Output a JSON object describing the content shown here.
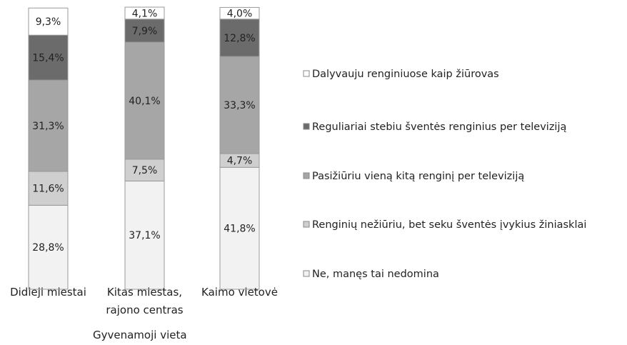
{
  "chart_data": {
    "type": "stacked_bar",
    "x_label": "Gyvenamoji vieta",
    "categories": [
      "Didieji miestai",
      "Kitas miestas, rajono centras",
      "Kaimo vietovė"
    ],
    "ylim": [
      0,
      96.7
    ],
    "series": [
      {
        "name": "Ne, manęs tai nedomina",
        "color": "#f2f2f2",
        "values": [
          28.8,
          37.1,
          41.8
        ],
        "value_labels": [
          "28,8%",
          "37,1%",
          "41,8%"
        ]
      },
      {
        "name": "Renginių nežiūriu, bet seku šventės įvykius žiniasklai",
        "color": "#cfcfcf",
        "values": [
          11.6,
          7.5,
          4.7
        ],
        "value_labels": [
          "11,6%",
          "7,5%",
          "4,7%"
        ]
      },
      {
        "name": "Pasižiūriu vieną kitą renginį per televiziją",
        "color": "#a6a6a6",
        "values": [
          31.3,
          40.1,
          33.3
        ],
        "value_labels": [
          "31,3%",
          "40,1%",
          "33,3%"
        ]
      },
      {
        "name": "Reguliariai stebiu šventės renginius per televiziją",
        "color": "#6b6b6b",
        "values": [
          15.4,
          7.9,
          12.8
        ],
        "value_labels": [
          "15,4%",
          "7,9%",
          "12,8%"
        ]
      },
      {
        "name": "Dalyvauju renginiuose kaip žiūrovas",
        "color": "#ffffff",
        "values": [
          9.3,
          4.1,
          4.0
        ],
        "value_labels": [
          "9,3%",
          "4,1%",
          "4,0%"
        ]
      }
    ]
  }
}
